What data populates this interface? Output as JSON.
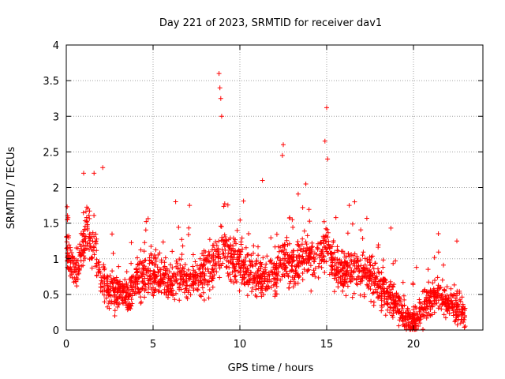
{
  "chart_data": {
    "type": "scatter",
    "title": "Day 221 of 2023, SRMTID for receiver dav1",
    "xlabel": "GPS time / hours",
    "ylabel": "SRMTID / TECUs",
    "xlim": [
      0,
      24
    ],
    "ylim": [
      0,
      4
    ],
    "xticks": [
      0,
      5,
      10,
      15,
      20
    ],
    "yticks": [
      0,
      0.5,
      1,
      1.5,
      2,
      2.5,
      3,
      3.5,
      4
    ],
    "xtick_labels": [
      "0",
      "5",
      "10",
      "15",
      "20"
    ],
    "ytick_labels": [
      "0",
      "0.5",
      "1",
      "1.5",
      "2",
      "2.5",
      "3",
      "3.5",
      "4"
    ],
    "grid": true,
    "marker": "+",
    "color": "#ff0000",
    "series": [
      {
        "name": "SRMTID",
        "profile": [
          [
            0.0,
            1.15
          ],
          [
            0.3,
            1.0
          ],
          [
            0.6,
            0.75
          ],
          [
            0.9,
            1.1
          ],
          [
            1.2,
            1.45
          ],
          [
            1.6,
            1.2
          ],
          [
            2.0,
            0.75
          ],
          [
            2.5,
            0.55
          ],
          [
            3.0,
            0.55
          ],
          [
            3.5,
            0.45
          ],
          [
            4.0,
            0.7
          ],
          [
            4.5,
            0.8
          ],
          [
            5.0,
            0.75
          ],
          [
            5.5,
            0.75
          ],
          [
            6.0,
            0.7
          ],
          [
            6.5,
            0.75
          ],
          [
            7.0,
            0.65
          ],
          [
            7.5,
            0.7
          ],
          [
            8.0,
            0.8
          ],
          [
            8.5,
            1.0
          ],
          [
            9.0,
            1.1
          ],
          [
            9.5,
            1.05
          ],
          [
            10.0,
            0.95
          ],
          [
            10.5,
            0.85
          ],
          [
            11.0,
            0.75
          ],
          [
            11.5,
            0.7
          ],
          [
            12.0,
            0.8
          ],
          [
            12.5,
            1.0
          ],
          [
            13.0,
            0.9
          ],
          [
            13.5,
            1.0
          ],
          [
            14.0,
            1.05
          ],
          [
            14.5,
            1.0
          ],
          [
            15.0,
            1.2
          ],
          [
            15.5,
            0.9
          ],
          [
            16.0,
            0.8
          ],
          [
            16.5,
            0.85
          ],
          [
            17.0,
            0.85
          ],
          [
            17.5,
            0.75
          ],
          [
            18.0,
            0.65
          ],
          [
            18.5,
            0.5
          ],
          [
            19.0,
            0.35
          ],
          [
            19.5,
            0.18
          ],
          [
            20.0,
            0.12
          ],
          [
            20.5,
            0.3
          ],
          [
            21.0,
            0.45
          ],
          [
            21.5,
            0.5
          ],
          [
            22.0,
            0.35
          ],
          [
            22.5,
            0.3
          ],
          [
            22.9,
            0.2
          ]
        ],
        "spikes": [
          [
            0.05,
            1.73
          ],
          [
            1.0,
            2.2
          ],
          [
            1.6,
            2.2
          ],
          [
            2.1,
            2.28
          ],
          [
            8.8,
            3.6
          ],
          [
            8.85,
            3.4
          ],
          [
            8.9,
            3.25
          ],
          [
            8.95,
            3.0
          ],
          [
            12.5,
            2.6
          ],
          [
            12.45,
            2.45
          ],
          [
            15.0,
            3.12
          ],
          [
            14.9,
            2.65
          ],
          [
            15.05,
            2.4
          ],
          [
            11.3,
            2.1
          ],
          [
            13.8,
            2.05
          ],
          [
            16.3,
            1.75
          ],
          [
            18.7,
            1.43
          ],
          [
            22.5,
            1.25
          ],
          [
            6.3,
            1.8
          ],
          [
            7.1,
            1.75
          ]
        ],
        "x_range": [
          0,
          23
        ],
        "count": 2200
      }
    ]
  }
}
